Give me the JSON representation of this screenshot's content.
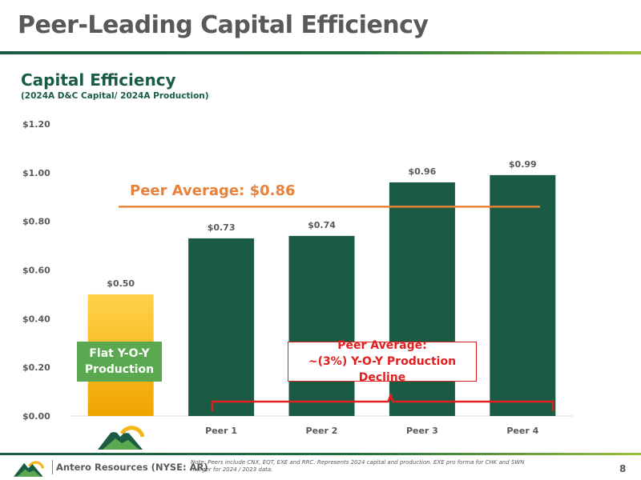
{
  "page": {
    "title": "Peer-Leading Capital Efficiency",
    "page_number": "8"
  },
  "chart_title": "Capital Efficiency",
  "chart_subtitle": "(2024A D&C Capital/ 2024A Production)",
  "peer_average_label": "Peer Average: $0.86",
  "callouts": {
    "flat": "Flat Y-O-Y Production",
    "peer_line1": "Peer Average:",
    "peer_line2": "~(3%) Y-O-Y Production Decline"
  },
  "footer": {
    "company": "Antero Resources (NYSE: AR)",
    "note": "Note:  Peers include CNX, EQT, EXE and RRC.  Represents 2024 capital and production. EXE pro forma for CHK and SWN merger for 2024 / 2023 data."
  },
  "colors": {
    "accent_green": "#1a5c43",
    "bar_dark_green": "#1a5c43",
    "bar_gold_top": "#ffd24a",
    "bar_gold_bottom": "#f0a500",
    "peer_avg_line": "#e8823a",
    "brace_red": "#e02020",
    "callout_green": "#5aa84f"
  },
  "chart_data": {
    "type": "bar",
    "title": "Capital Efficiency",
    "subtitle": "(2024A D&C Capital/ 2024A Production)",
    "categories": [
      "",
      "Peer 1",
      "Peer 2",
      "Peer 3",
      "Peer 4"
    ],
    "values": [
      0.5,
      0.73,
      0.74,
      0.96,
      0.99
    ],
    "value_labels": [
      "$0.50",
      "$0.73",
      "$0.74",
      "$0.96",
      "$0.99"
    ],
    "ylim": [
      0,
      1.2
    ],
    "yticks": [
      0,
      0.2,
      0.4,
      0.6,
      0.8,
      1.0,
      1.2
    ],
    "ytick_labels": [
      "$0.00",
      "$0.20",
      "$0.40",
      "$0.60",
      "$0.80",
      "$1.00",
      "$1.20"
    ],
    "reference_line": {
      "value": 0.86,
      "label": "Peer Average: $0.86"
    },
    "grid": false,
    "legend": "none",
    "first_category_icon": "antero-mountain-logo"
  }
}
